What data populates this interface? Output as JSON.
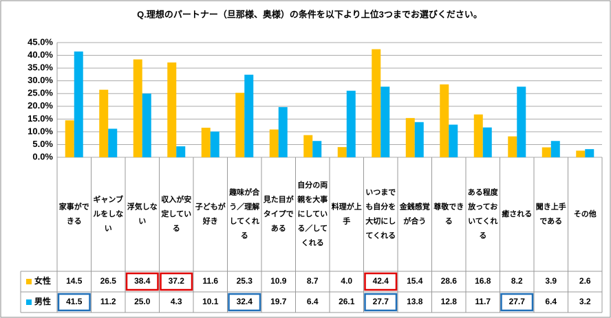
{
  "chart_data": {
    "type": "bar",
    "title": "Q.理想のパートナー（旦那様、奥様）の条件を以下より上位3つまでお選びください。",
    "categories": [
      "家事ができる",
      "ギャンブルをしない",
      "浮気しない",
      "収入が安定している",
      "子どもが好き",
      "趣味が合う／理解してくれる",
      "見た目がタイプである",
      "自分の両親を大事にしている／してくれる",
      "料理が上手",
      "いつまでも自分を大切にしてくれる",
      "金銭感覚が合う",
      "尊敬できる",
      "ある程度放っておいてくれる",
      "癒される",
      "聞き上手である",
      "その他"
    ],
    "series": [
      {
        "name": "女性",
        "color": "#ffc000",
        "highlight_color": "#e00000",
        "highlight": [
          2,
          3,
          9
        ],
        "values": [
          14.5,
          26.5,
          38.4,
          37.2,
          11.6,
          25.3,
          10.9,
          8.7,
          4.0,
          42.4,
          15.4,
          28.6,
          16.8,
          8.2,
          3.9,
          2.6
        ],
        "value_labels": [
          "14.5",
          "26.5",
          "38.4",
          "37.2",
          "11.6",
          "25.3",
          "10.9",
          "8.7",
          "4.0",
          "42.4",
          "15.4",
          "28.6",
          "16.8",
          "8.2",
          "3.9",
          "2.6"
        ]
      },
      {
        "name": "男性",
        "color": "#00b0f0",
        "highlight_color": "#1f6fb8",
        "highlight": [
          0,
          5,
          9,
          13
        ],
        "values": [
          41.5,
          11.2,
          25.0,
          4.3,
          10.1,
          32.4,
          19.7,
          6.4,
          26.1,
          27.7,
          13.8,
          12.8,
          11.7,
          27.7,
          6.4,
          3.2
        ],
        "value_labels": [
          "41.5",
          "11.2",
          "25.0",
          "4.3",
          "10.1",
          "32.4",
          "19.7",
          "6.4",
          "26.1",
          "27.7",
          "13.8",
          "12.8",
          "11.7",
          "27.7",
          "6.4",
          "3.2"
        ]
      }
    ],
    "ylim": [
      0,
      45
    ],
    "yticks": [
      {
        "value": 0,
        "label": "0.0%"
      },
      {
        "value": 5,
        "label": "5.0%"
      },
      {
        "value": 10,
        "label": "10.0%"
      },
      {
        "value": 15,
        "label": "15.0%"
      },
      {
        "value": 20,
        "label": "20.0%"
      },
      {
        "value": 25,
        "label": "25.0%"
      },
      {
        "value": 30,
        "label": "30.0%"
      },
      {
        "value": 35,
        "label": "35.0%"
      },
      {
        "value": 40,
        "label": "40.0%"
      },
      {
        "value": 45,
        "label": "45.0%"
      }
    ],
    "grid": true
  }
}
